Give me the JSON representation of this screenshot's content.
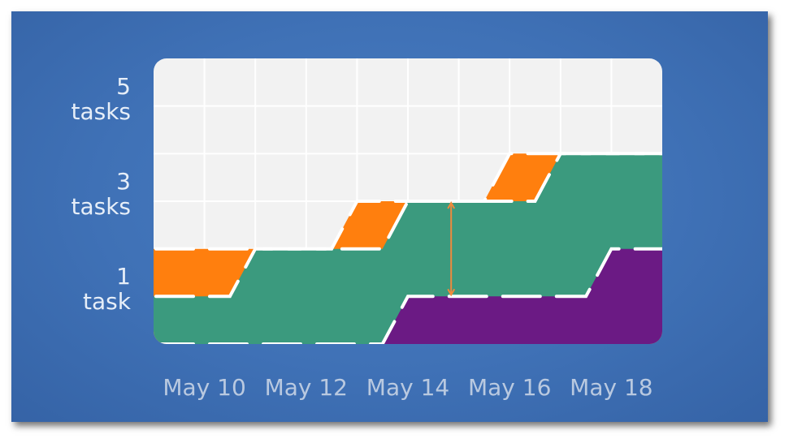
{
  "chart_data": {
    "type": "area",
    "y_tick_labels": [
      {
        "value": 5,
        "number": "5",
        "unit": "tasks"
      },
      {
        "value": 3,
        "number": "3",
        "unit": "tasks"
      },
      {
        "value": 1,
        "number": "1",
        "unit": "task"
      }
    ],
    "x_tick_labels": [
      "May 10",
      "May 12",
      "May 14",
      "May 16",
      "May 18"
    ],
    "x": [
      "May 9",
      "May 10",
      "May 11",
      "May 12",
      "May 13",
      "May 14",
      "May 15",
      "May 16",
      "May 17",
      "May 18",
      "May 19"
    ],
    "ylim": [
      0,
      6
    ],
    "grid": true,
    "series": [
      {
        "color": "#6b1a84",
        "values": [
          0,
          0,
          0,
          0,
          0,
          1,
          1,
          1,
          1,
          2,
          2
        ]
      },
      {
        "color": "#3b9a7e",
        "values": [
          1,
          1,
          2,
          2,
          2,
          3,
          3,
          3,
          4,
          4,
          4
        ]
      },
      {
        "color": "#ff7f0e",
        "values": [
          2,
          2,
          2,
          2,
          3,
          3,
          3,
          4,
          4,
          4,
          4
        ]
      }
    ],
    "annotation": {
      "type": "double-arrow",
      "x": "May 14",
      "y_from": 1,
      "y_to": 3,
      "color": "#f08a3c"
    }
  },
  "colors": {
    "background": "#3f71b6",
    "plot_background": "#f2f2f2",
    "grid": "#ffffff",
    "axis_text": "#dfe8f4",
    "dash": "#ffffff"
  }
}
